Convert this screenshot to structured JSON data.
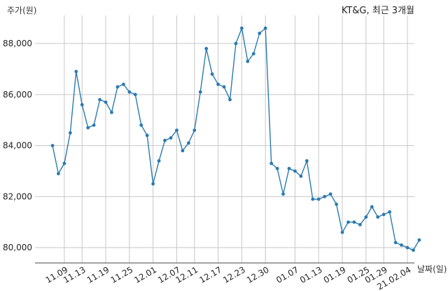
{
  "chart_data": {
    "type": "line",
    "title": "KT&G, 최근 3개월",
    "ylabel": "주가(원)",
    "xlabel": "날짜(일)",
    "ylim": [
      79400,
      89100
    ],
    "yticks": [
      80000,
      82000,
      84000,
      86000,
      88000
    ],
    "ytick_labels": [
      "80,000",
      "82,000",
      "84,000",
      "86,000",
      "88,000"
    ],
    "xtick_labels": [
      "11.09",
      "11.13",
      "11.19",
      "11.25",
      "12.01",
      "12.07",
      "12.11",
      "12.17",
      "12.23",
      "12.30",
      "01.07",
      "01.13",
      "01.19",
      "01.25",
      "01.29",
      "21.02.04"
    ],
    "xtick_positions": [
      2,
      5,
      9,
      13,
      17,
      21,
      24,
      28,
      32,
      36,
      41,
      45,
      49,
      53,
      56,
      60
    ],
    "grid": true,
    "series": [
      {
        "color": "#2a7ab0",
        "values": [
          84000,
          82900,
          83300,
          84500,
          86900,
          85600,
          84700,
          84800,
          85800,
          85700,
          85300,
          86300,
          86400,
          86100,
          86000,
          84800,
          84400,
          82500,
          83400,
          84200,
          84300,
          84600,
          83800,
          84100,
          84600,
          86100,
          87800,
          86800,
          86400,
          86300,
          85800,
          88000,
          88600,
          87300,
          87600,
          88400,
          88600,
          83300,
          83100,
          82100,
          83100,
          83000,
          82800,
          83400,
          81900,
          81900,
          82000,
          82100,
          81700,
          80600,
          81000,
          81000,
          80900,
          81200,
          81600,
          81200,
          81300,
          81400,
          80200,
          80100,
          80000,
          79900,
          80300
        ]
      }
    ]
  }
}
